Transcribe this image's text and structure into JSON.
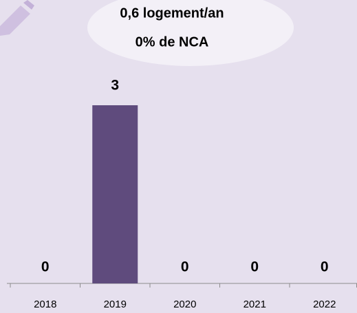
{
  "chart_data": {
    "type": "bar",
    "annotations": [
      "0,6 logement/an",
      "0% de NCA"
    ],
    "categories": [
      "2018",
      "2019",
      "2020",
      "2021",
      "2022"
    ],
    "values": [
      0,
      3,
      0,
      0,
      0
    ],
    "color": "#5f4b7d"
  }
}
